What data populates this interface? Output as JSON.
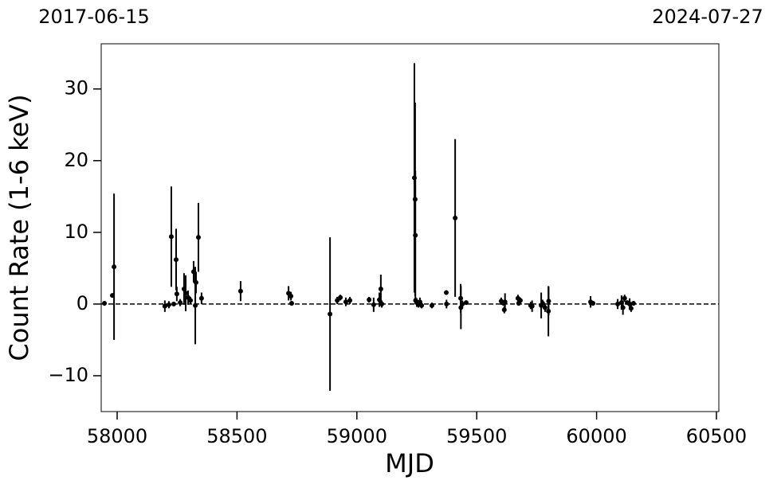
{
  "chart_data": {
    "type": "errorbar",
    "top_left_label": "2017-06-15",
    "top_right_label": "2024-07-27",
    "x_label": "MJD",
    "y_label": "Count Rate (1-6 keV)",
    "xlim": [
      57933.5,
      60510
    ],
    "ylim": [
      -15,
      36.3
    ],
    "xticks": [
      58000,
      58500,
      59000,
      59500,
      60000,
      60500
    ],
    "yticks": [
      {
        "value": -10,
        "label": "−10"
      },
      0,
      10,
      20,
      30
    ],
    "reference_line": 0,
    "series": [
      {
        "color": "#000000",
        "x": [
          57947,
          57980,
          57987,
          58199,
          58216,
          58226,
          58236,
          58246,
          58249,
          58263,
          58279,
          58286,
          58296,
          58306,
          58319,
          58326,
          58329,
          58339,
          58352,
          58515,
          58715,
          58725,
          58728,
          58888,
          58918,
          58931,
          58954,
          58971,
          59051,
          59070,
          59094,
          59100,
          59104,
          59240,
          59243,
          59244,
          59245,
          59250,
          59257,
          59263,
          59270,
          59313,
          59373,
          59374,
          59410,
          59433,
          59434,
          59440,
          59456,
          59602,
          59612,
          59615,
          59618,
          59672,
          59675,
          59682,
          59725,
          59731,
          59769,
          59775,
          59785,
          59799,
          59800,
          59975,
          59985,
          60088,
          60104,
          60110,
          60117,
          60128,
          60138,
          60144,
          60154
        ],
        "values": [
          0.1,
          1.2,
          5.2,
          -0.3,
          -0.1,
          9.4,
          0,
          6.2,
          1.4,
          0.2,
          2.1,
          1.5,
          0.9,
          0.5,
          4.5,
          -0.2,
          3,
          9.3,
          0.8,
          1.8,
          1.5,
          1.1,
          0.1,
          -1.4,
          0.5,
          0.9,
          0.3,
          0.5,
          0.6,
          -0.1,
          0.6,
          2.1,
          0,
          17.6,
          14.6,
          9.6,
          0.5,
          0.2,
          0,
          0.3,
          -0.2,
          -0.2,
          1.6,
          0,
          12,
          0.8,
          -0.5,
          0,
          0.2,
          0.4,
          0.1,
          -0.8,
          0.3,
          0.8,
          0.1,
          0.5,
          -0.2,
          -0.3,
          -0.2,
          0.1,
          -0.5,
          -1,
          0.4,
          0.3,
          0.1,
          0,
          0.2,
          -0.5,
          0.8,
          0.2,
          0,
          -0.6,
          0.1
        ],
        "errors": [
          0.3,
          0.3,
          10.2,
          0.8,
          0.5,
          7,
          0.3,
          4.3,
          1,
          0.5,
          2.2,
          2.5,
          1,
          0.5,
          1.5,
          5.4,
          1.5,
          4.8,
          0.8,
          1.4,
          1,
          0.6,
          0.3,
          10.7,
          0.5,
          0.4,
          0.6,
          0.5,
          0.4,
          1,
          1,
          2,
          0.5,
          16,
          13.5,
          9,
          0.5,
          0.6,
          0.5,
          0.6,
          0.4,
          0.4,
          0.3,
          0.6,
          11,
          2,
          3,
          0.5,
          0.3,
          0.5,
          0.3,
          0.5,
          1.2,
          0.5,
          0.3,
          0.4,
          0.5,
          0.8,
          1.8,
          0.5,
          0.6,
          3.5,
          2,
          0.8,
          0.3,
          0.7,
          1,
          1,
          0.5,
          0.3,
          0.8,
          0.5,
          0.3
        ]
      }
    ]
  }
}
